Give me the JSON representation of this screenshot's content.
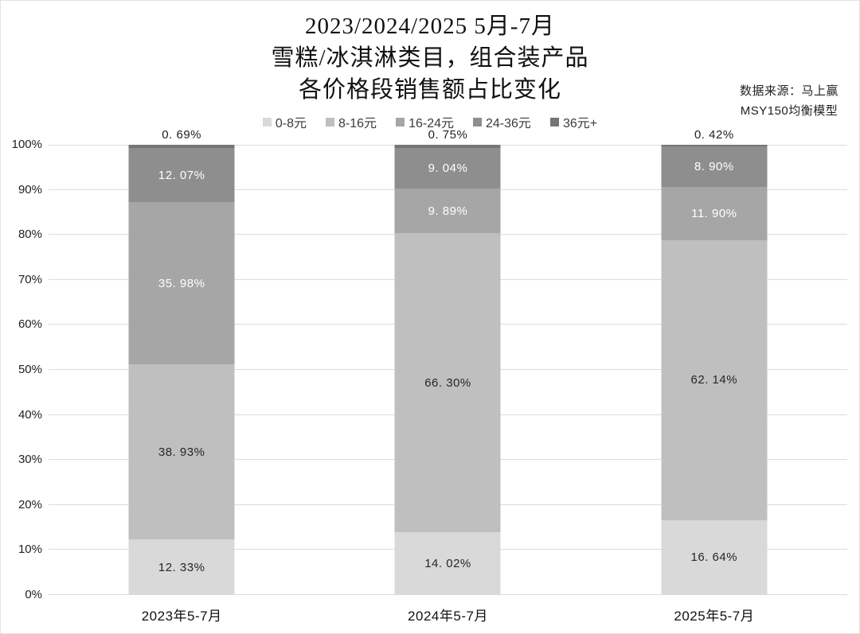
{
  "header": {
    "title_lines": [
      "2023/2024/2025 5月-7月",
      "雪糕/冰淇淋类目，组合装产品",
      "各价格段销售额占比变化"
    ],
    "source_lines": [
      "数据来源：马上赢",
      "MSY150均衡模型"
    ]
  },
  "chart_data": {
    "type": "bar",
    "stacked": true,
    "percent_stacked": true,
    "title": "2023/2024/2025 5月-7月 雪糕/冰淇淋类目，组合装产品 各价格段销售额占比变化",
    "categories": [
      "2023年5-7月",
      "2024年5-7月",
      "2025年5-7月"
    ],
    "series": [
      {
        "name": "0-8元",
        "values": [
          12.33,
          14.02,
          16.64
        ],
        "labels": [
          "12. 33%",
          "14. 02%",
          "16. 64%"
        ],
        "color": "#d9d9d9",
        "label_color": "#262626",
        "labels_outside": false
      },
      {
        "name": "8-16元",
        "values": [
          38.93,
          66.3,
          62.14
        ],
        "labels": [
          "38. 93%",
          "66. 30%",
          "62. 14%"
        ],
        "color": "#bfbfbf",
        "label_color": "#262626",
        "labels_outside": false
      },
      {
        "name": "16-24元",
        "values": [
          35.98,
          9.89,
          11.9
        ],
        "labels": [
          "35. 98%",
          "9. 89%",
          "11. 90%"
        ],
        "color": "#a6a6a6",
        "label_color": "#ffffff",
        "labels_outside": false
      },
      {
        "name": "24-36元",
        "values": [
          12.07,
          9.04,
          8.9
        ],
        "labels": [
          "12. 07%",
          "9. 04%",
          "8. 90%"
        ],
        "color": "#8e8e8e",
        "label_color": "#ffffff",
        "labels_outside": false
      },
      {
        "name": "36元+",
        "values": [
          0.69,
          0.75,
          0.42
        ],
        "labels": [
          "0. 69%",
          "0. 75%",
          "0. 42%"
        ],
        "color": "#757575",
        "label_color": "#222222",
        "labels_outside": true
      }
    ],
    "ylabel": "",
    "xlabel": "",
    "ylim": [
      0,
      100
    ],
    "ytick_labels": [
      "100%",
      "90%",
      "80%",
      "70%",
      "60%",
      "50%",
      "40%",
      "30%",
      "20%",
      "10%",
      "0%"
    ],
    "grid": true,
    "gridline_color": "#dcdcdc",
    "legend_position": "top",
    "background_color": "#ffffff"
  }
}
